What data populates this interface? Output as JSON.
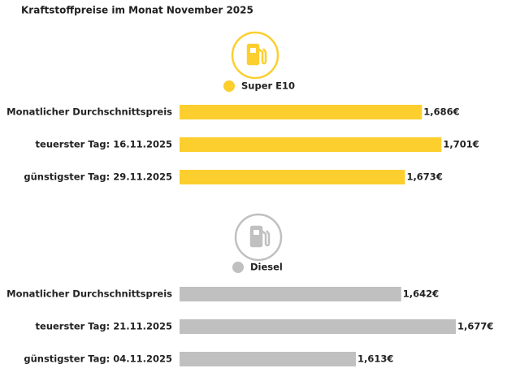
{
  "title": "Kraftstoffpreise im Monat November 2025",
  "chart_data": [
    {
      "type": "bar",
      "orientation": "horizontal",
      "categories": [
        "Monatlicher Durchschnittspreis",
        "teuerster Tag: 16.11.2025",
        "günstigster Tag: 29.11.2025"
      ],
      "series": [
        {
          "name": "Super E10",
          "color": "#fccf2f",
          "values": [
            1.686,
            1.701,
            1.673
          ],
          "value_labels": [
            "1,686€",
            "1,701€",
            "1,673€"
          ]
        }
      ],
      "xlim": [
        1.5,
        1.712
      ]
    },
    {
      "type": "bar",
      "orientation": "horizontal",
      "categories": [
        "Monatlicher Durchschnittspreis",
        "teuerster Tag: 21.11.2025",
        "günstigster Tag: 04.11.2025"
      ],
      "series": [
        {
          "name": "Diesel",
          "color": "#c0c0c0",
          "values": [
            1.642,
            1.677,
            1.613
          ],
          "value_labels": [
            "1,642€",
            "1,677€",
            "1,613€"
          ]
        }
      ],
      "xlim": [
        1.5,
        1.677
      ]
    }
  ]
}
